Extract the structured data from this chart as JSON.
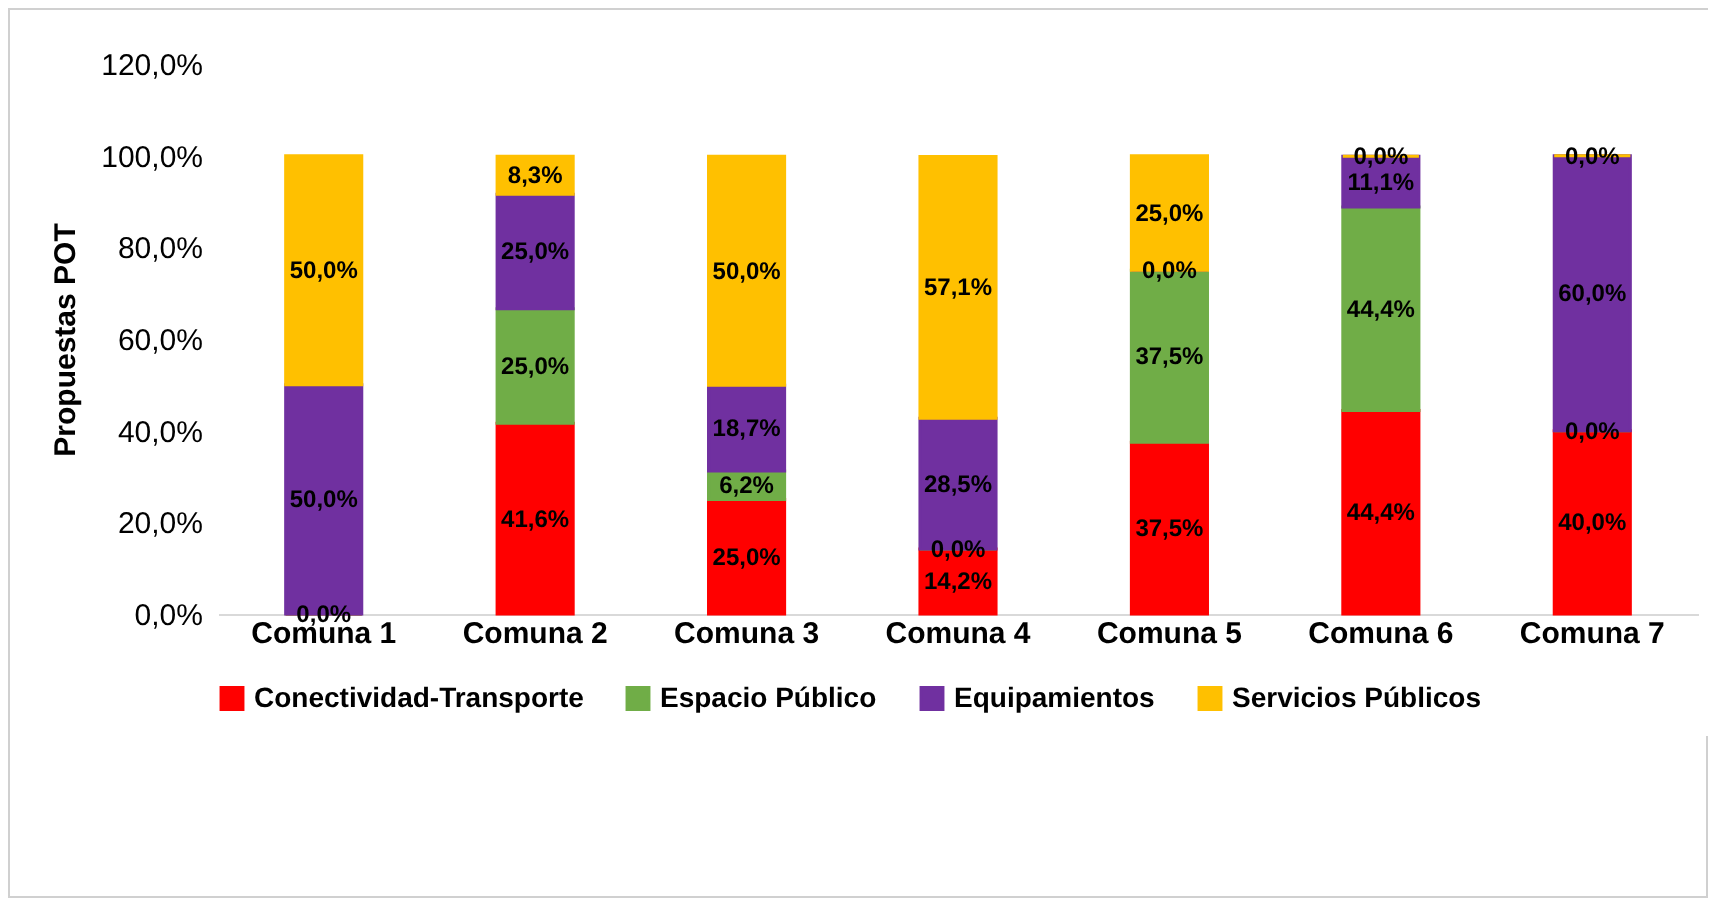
{
  "chart_data": {
    "type": "bar",
    "stacked": true,
    "ylabel": "Propuestas POT",
    "categories": [
      "Comuna 1",
      "Comuna 2",
      "Comuna 3",
      "Comuna 4",
      "Comuna 5",
      "Comuna 6",
      "Comuna 7"
    ],
    "ylim": [
      0,
      120
    ],
    "yticks": [
      {
        "value": 0,
        "label": "0,0%"
      },
      {
        "value": 20,
        "label": "20,0%"
      },
      {
        "value": 40,
        "label": "40,0%"
      },
      {
        "value": 60,
        "label": "60,0%"
      },
      {
        "value": 80,
        "label": "80,0%"
      },
      {
        "value": 100,
        "label": "100,0%"
      },
      {
        "value": 120,
        "label": "120,0%"
      }
    ],
    "grid": false,
    "legend": "bottom",
    "series": [
      {
        "name": "Conectividad-Transporte",
        "color": "#ff0000",
        "values": [
          0,
          41.6,
          25,
          14.2,
          37.5,
          44.4,
          40
        ],
        "value_labels": [
          "0,0%",
          "41,6%",
          "25,0%",
          "14,2%",
          "37,5%",
          "44,4%",
          "40,0%"
        ]
      },
      {
        "name": "Espacio Público",
        "color": "#70ad47",
        "values": [
          0,
          25,
          6.2,
          0,
          37.5,
          44.4,
          0
        ],
        "value_labels": [
          null,
          "25,0%",
          "6,2%",
          "0,0%",
          "37,5%",
          "44,4%",
          "0,0%"
        ]
      },
      {
        "name": "Equipamientos",
        "color": "#7030a0",
        "values": [
          50,
          25,
          18.7,
          28.5,
          0,
          11.1,
          60
        ],
        "value_labels": [
          "50,0%",
          "25,0%",
          "18,7%",
          "28,5%",
          "0,0%",
          "11,1%",
          "60,0%"
        ]
      },
      {
        "name": "Servicios Públicos",
        "color": "#ffc000",
        "values": [
          50,
          8.3,
          50,
          57.1,
          25,
          0,
          0
        ],
        "value_labels": [
          "50,0%",
          "8,3%",
          "50,0%",
          "57,1%",
          "25,0%",
          "0,0%",
          "0,0%"
        ]
      }
    ]
  }
}
